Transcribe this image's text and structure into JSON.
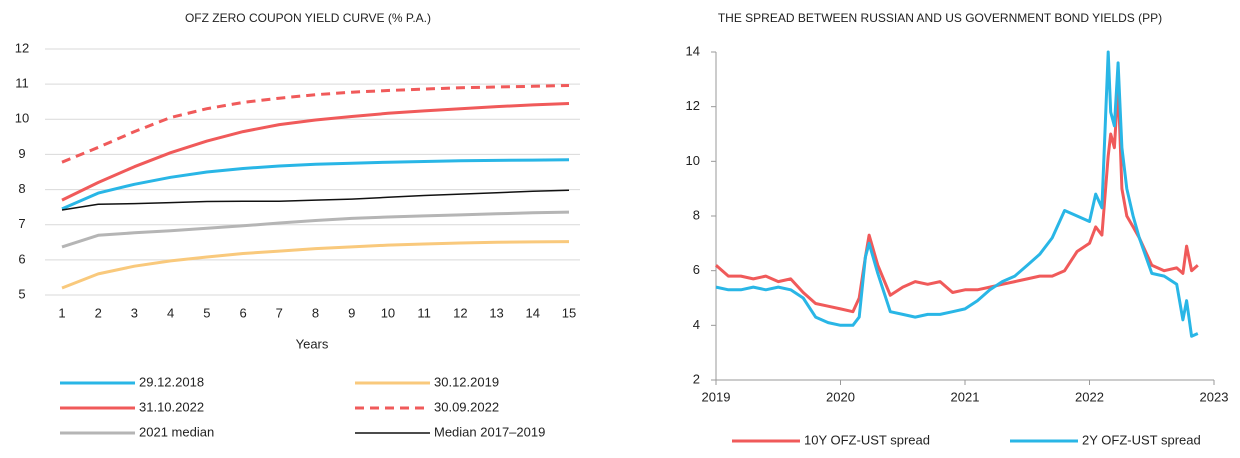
{
  "chart_data": [
    {
      "type": "line",
      "title": "OFZ ZERO COUPON YIELD CURVE (% P.A.)",
      "x_label": "Years",
      "categories": [
        "1",
        "2",
        "3",
        "4",
        "5",
        "6",
        "7",
        "8",
        "9",
        "10",
        "11",
        "12",
        "13",
        "14",
        "15"
      ],
      "ylim": [
        5,
        12
      ],
      "yticks": [
        5,
        6,
        7,
        8,
        9,
        10,
        11,
        12
      ],
      "grid": true,
      "series": [
        {
          "name": "29.12.2018",
          "color": "#29b6e6",
          "dash": false,
          "values": [
            7.45,
            7.9,
            8.15,
            8.35,
            8.5,
            8.6,
            8.67,
            8.72,
            8.75,
            8.78,
            8.8,
            8.82,
            8.83,
            8.84,
            8.85
          ]
        },
        {
          "name": "30.12.2019",
          "color": "#f9c97c",
          "dash": false,
          "values": [
            5.2,
            5.6,
            5.82,
            5.97,
            6.08,
            6.18,
            6.25,
            6.32,
            6.37,
            6.42,
            6.45,
            6.48,
            6.5,
            6.51,
            6.52
          ]
        },
        {
          "name": "31.10.2022",
          "color": "#f05a5a",
          "dash": false,
          "values": [
            7.7,
            8.2,
            8.65,
            9.05,
            9.38,
            9.65,
            9.85,
            9.98,
            10.08,
            10.17,
            10.24,
            10.3,
            10.36,
            10.41,
            10.45
          ]
        },
        {
          "name": "30.09.2022",
          "color": "#f05a5a",
          "dash": true,
          "values": [
            8.78,
            9.2,
            9.65,
            10.05,
            10.3,
            10.48,
            10.6,
            10.7,
            10.77,
            10.82,
            10.86,
            10.9,
            10.92,
            10.94,
            10.96
          ]
        },
        {
          "name": "2021 median",
          "color": "#b5b5b5",
          "dash": false,
          "values": [
            6.37,
            6.7,
            6.77,
            6.83,
            6.9,
            6.97,
            7.05,
            7.12,
            7.18,
            7.22,
            7.25,
            7.28,
            7.31,
            7.34,
            7.36
          ]
        },
        {
          "name": "Median 2017–2019",
          "color": "#111111",
          "dash": false,
          "thin": true,
          "values": [
            7.42,
            7.58,
            7.6,
            7.63,
            7.66,
            7.67,
            7.67,
            7.7,
            7.73,
            7.78,
            7.83,
            7.87,
            7.91,
            7.95,
            7.98
          ]
        }
      ]
    },
    {
      "type": "line",
      "title": "THE SPREAD BETWEEN RUSSIAN AND US GOVERNMENT BOND YIELDS (PP)",
      "x": [
        2019.0,
        2019.1,
        2019.2,
        2019.3,
        2019.4,
        2019.5,
        2019.6,
        2019.7,
        2019.8,
        2019.9,
        2020.0,
        2020.1,
        2020.15,
        2020.2,
        2020.23,
        2020.3,
        2020.4,
        2020.5,
        2020.6,
        2020.7,
        2020.8,
        2020.9,
        2021.0,
        2021.1,
        2021.2,
        2021.3,
        2021.4,
        2021.5,
        2021.6,
        2021.7,
        2021.8,
        2021.9,
        2022.0,
        2022.05,
        2022.1,
        2022.15,
        2022.17,
        2022.2,
        2022.23,
        2022.26,
        2022.3,
        2022.35,
        2022.4,
        2022.5,
        2022.6,
        2022.7,
        2022.75,
        2022.78,
        2022.82,
        2022.87
      ],
      "xlim": [
        2019,
        2023
      ],
      "xticks": [
        2019,
        2020,
        2021,
        2022,
        2023
      ],
      "ylim": [
        2,
        14
      ],
      "yticks": [
        2,
        4,
        6,
        8,
        10,
        12,
        14
      ],
      "grid": false,
      "series": [
        {
          "name": "10Y OFZ-UST spread",
          "color": "#f05a5a",
          "dash": false,
          "values": [
            6.2,
            5.8,
            5.8,
            5.7,
            5.8,
            5.6,
            5.7,
            5.2,
            4.8,
            4.7,
            4.6,
            4.5,
            5.0,
            6.5,
            7.3,
            6.2,
            5.1,
            5.4,
            5.6,
            5.5,
            5.6,
            5.2,
            5.3,
            5.3,
            5.4,
            5.5,
            5.6,
            5.7,
            5.8,
            5.8,
            6.0,
            6.7,
            7.0,
            7.6,
            7.3,
            10.2,
            11.0,
            10.5,
            12.8,
            9.0,
            8.0,
            7.6,
            7.2,
            6.2,
            6.0,
            6.1,
            5.9,
            6.9,
            6.0,
            6.2
          ]
        },
        {
          "name": "2Y OFZ-UST spread",
          "color": "#29b6e6",
          "dash": false,
          "values": [
            5.4,
            5.3,
            5.3,
            5.4,
            5.3,
            5.4,
            5.3,
            5.0,
            4.3,
            4.1,
            4.0,
            4.0,
            4.3,
            6.5,
            7.0,
            5.9,
            4.5,
            4.4,
            4.3,
            4.4,
            4.4,
            4.5,
            4.6,
            4.9,
            5.3,
            5.6,
            5.8,
            6.2,
            6.6,
            7.2,
            8.2,
            8.0,
            7.8,
            8.8,
            8.3,
            14.0,
            11.8,
            11.3,
            13.6,
            10.5,
            9.0,
            8.0,
            7.2,
            5.9,
            5.8,
            5.5,
            4.2,
            4.9,
            3.6,
            3.7
          ]
        }
      ]
    }
  ]
}
